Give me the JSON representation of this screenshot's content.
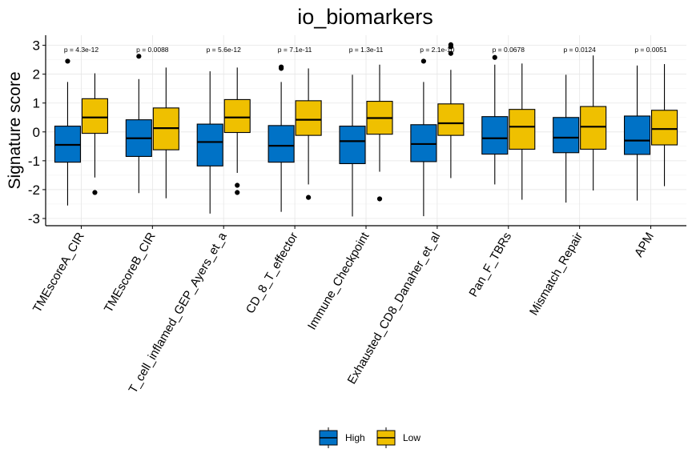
{
  "chart_data": {
    "type": "boxplot",
    "title": "io_biomarkers",
    "ylabel": "Signature score",
    "xlabel": "",
    "ylim": [
      -3.25,
      3.35
    ],
    "yticks": [
      -3,
      -2,
      -1,
      0,
      1,
      2,
      3
    ],
    "grid": true,
    "legend_position": "bottom",
    "colors": {
      "High": "#0072C6",
      "Low": "#EFC000"
    },
    "series": [
      {
        "name": "High"
      },
      {
        "name": "Low"
      }
    ],
    "categories": [
      "TMEscoreA_CIR",
      "TMEscoreB_CIR",
      "T_cell_inflamed_GEP_Ayers_et_a",
      "CD_8_T_effector",
      "Immune_Checkpoint",
      "Exhausted_CD8_Danaher_et_al",
      "Pan_F_TBRs",
      "Mismatch_Repair",
      "APM"
    ],
    "p_values": [
      "p = 4.3e-12",
      "p = 0.0088",
      "p = 5.6e-12",
      "p = 7.1e-11",
      "p = 1.3e-11",
      "p = 2.1e-10",
      "p = 0.0678",
      "p = 0.0124",
      "p = 0.0051"
    ],
    "boxes": [
      {
        "High": {
          "min": -2.55,
          "q1": -1.05,
          "median": -0.45,
          "q3": 0.2,
          "max": 1.73,
          "outliers": [
            2.45
          ]
        },
        "Low": {
          "min": -1.58,
          "q1": -0.05,
          "median": 0.5,
          "q3": 1.15,
          "max": 2.03,
          "outliers": [
            -2.1
          ]
        }
      },
      {
        "High": {
          "min": -2.12,
          "q1": -0.85,
          "median": -0.22,
          "q3": 0.42,
          "max": 1.83,
          "outliers": [
            2.62
          ]
        },
        "Low": {
          "min": -2.3,
          "q1": -0.62,
          "median": 0.13,
          "q3": 0.83,
          "max": 2.23,
          "outliers": []
        }
      },
      {
        "High": {
          "min": -2.83,
          "q1": -1.18,
          "median": -0.35,
          "q3": 0.27,
          "max": 2.1,
          "outliers": []
        },
        "Low": {
          "min": -1.42,
          "q1": -0.02,
          "median": 0.5,
          "q3": 1.12,
          "max": 2.23,
          "outliers": [
            -1.85,
            -2.1
          ]
        }
      },
      {
        "High": {
          "min": -2.77,
          "q1": -1.05,
          "median": -0.48,
          "q3": 0.22,
          "max": 1.73,
          "outliers": [
            2.2,
            2.25
          ]
        },
        "Low": {
          "min": -1.82,
          "q1": -0.12,
          "median": 0.42,
          "q3": 1.08,
          "max": 2.2,
          "outliers": [
            -2.27
          ]
        }
      },
      {
        "High": {
          "min": -2.93,
          "q1": -1.1,
          "median": -0.32,
          "q3": 0.2,
          "max": 1.98,
          "outliers": []
        },
        "Low": {
          "min": -1.38,
          "q1": -0.08,
          "median": 0.48,
          "q3": 1.06,
          "max": 2.33,
          "outliers": [
            -2.32
          ]
        }
      },
      {
        "High": {
          "min": -2.92,
          "q1": -1.03,
          "median": -0.42,
          "q3": 0.25,
          "max": 1.73,
          "outliers": [
            2.45
          ]
        },
        "Low": {
          "min": -1.6,
          "q1": -0.12,
          "median": 0.3,
          "q3": 0.97,
          "max": 2.15,
          "outliers": [
            2.72,
            2.95,
            3.02
          ]
        }
      },
      {
        "High": {
          "min": -1.82,
          "q1": -0.77,
          "median": -0.22,
          "q3": 0.53,
          "max": 2.33,
          "outliers": [
            2.58
          ]
        },
        "Low": {
          "min": -2.35,
          "q1": -0.6,
          "median": 0.18,
          "q3": 0.78,
          "max": 2.37,
          "outliers": []
        }
      },
      {
        "High": {
          "min": -2.45,
          "q1": -0.72,
          "median": -0.2,
          "q3": 0.5,
          "max": 1.98,
          "outliers": []
        },
        "Low": {
          "min": -2.03,
          "q1": -0.6,
          "median": 0.18,
          "q3": 0.88,
          "max": 2.65,
          "outliers": []
        }
      },
      {
        "High": {
          "min": -2.38,
          "q1": -0.78,
          "median": -0.3,
          "q3": 0.55,
          "max": 2.3,
          "outliers": []
        },
        "Low": {
          "min": -1.88,
          "q1": -0.45,
          "median": 0.1,
          "q3": 0.75,
          "max": 2.35,
          "outliers": []
        }
      }
    ]
  }
}
